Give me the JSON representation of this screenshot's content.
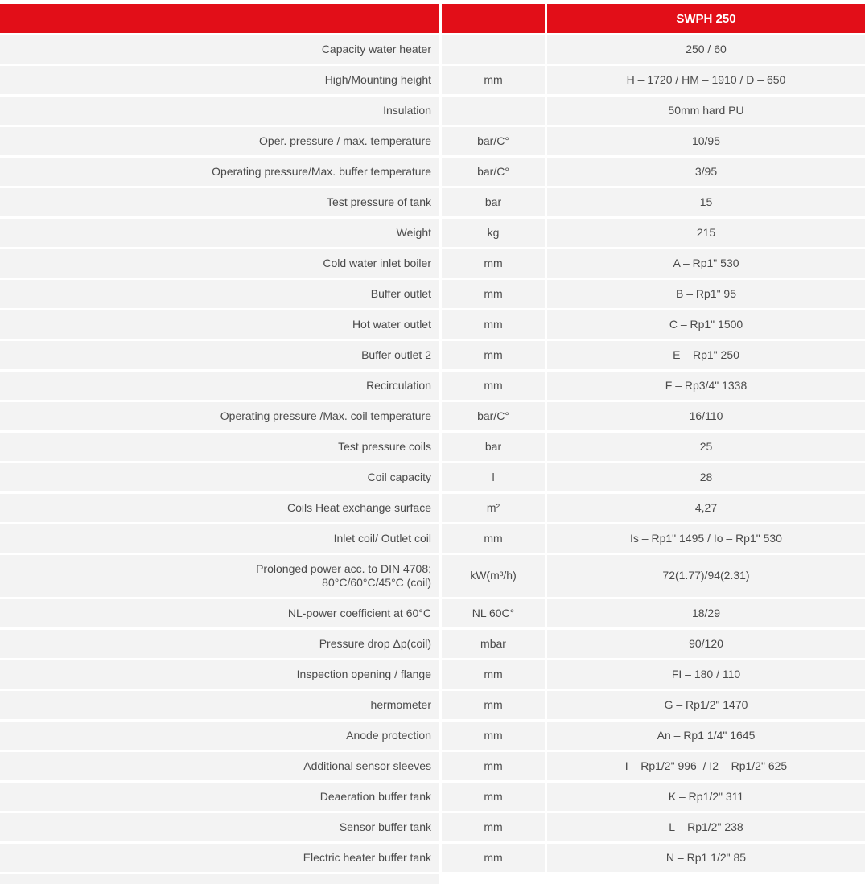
{
  "table": {
    "header": {
      "product": "SWPH 250"
    },
    "colors": {
      "header_bg": "#e20e18",
      "header_text": "#ffffff",
      "row_bg": "#f3f3f3",
      "text": "#4a4a4a"
    },
    "rows": [
      {
        "label": "Capacity water heater",
        "unit": "",
        "value": "250 / 60"
      },
      {
        "label": "High/Mounting height",
        "unit": "mm",
        "value": "H – 1720 / HM – 1910 / D – 650"
      },
      {
        "label": "Insulation",
        "unit": "",
        "value": "50mm hard PU"
      },
      {
        "label": "Oper. pressure / max. temperature",
        "unit": "bar/C°",
        "value": "10/95"
      },
      {
        "label": "Operating pressure/Max. buffer temperature",
        "unit": "bar/C°",
        "value": "3/95"
      },
      {
        "label": "Test pressure of tank",
        "unit": "bar",
        "value": "15"
      },
      {
        "label": "Weight",
        "unit": "kg",
        "value": "215"
      },
      {
        "label": "Cold water inlet boiler",
        "unit": "mm",
        "value": "A – Rp1\" 530"
      },
      {
        "label": "Buffer outlet",
        "unit": "mm",
        "value": "B – Rp1\" 95"
      },
      {
        "label": "Hot water outlet",
        "unit": "mm",
        "value": "C – Rp1\" 1500"
      },
      {
        "label": "Buffer outlet 2",
        "unit": "mm",
        "value": "E – Rp1\" 250"
      },
      {
        "label": "Recirculation",
        "unit": "mm",
        "value": "F – Rp3/4\" 1338"
      },
      {
        "label": "Operating pressure /Max. coil temperature",
        "unit": "bar/C°",
        "value": "16/110"
      },
      {
        "label": "Test pressure coils",
        "unit": "bar",
        "value": "25"
      },
      {
        "label": "Coil capacity",
        "unit": "l",
        "value": "28"
      },
      {
        "label": "Coils Heat exchange surface",
        "unit": "m²",
        "value": "4,27"
      },
      {
        "label": "Inlet coil/ Outlet coil",
        "unit": "mm",
        "value": "Is – Rp1\" 1495 / Io – Rp1\" 530"
      },
      {
        "label": "Prolonged power acc. to DIN 4708;",
        "label2": "80°C/60°C/45°C (coil)",
        "unit": "kW(m³/h)",
        "value": "72(1.77)/94(2.31)"
      },
      {
        "label": "NL-power coefficient at 60°C",
        "unit": "NL 60C°",
        "value": "18/29"
      },
      {
        "label": "Pressure drop Δp(coil)",
        "unit": "mbar",
        "value": "90/120"
      },
      {
        "label": "Inspection opening / flange",
        "unit": "mm",
        "value": "FI – 180 / 110"
      },
      {
        "label": "hermometer",
        "unit": "mm",
        "value": "G – Rp1/2\" 1470"
      },
      {
        "label": "Anode protection",
        "unit": "mm",
        "value": "An – Rp1 1/4\" 1645"
      },
      {
        "label": "Additional sensor sleeves",
        "unit": "mm",
        "value": "I – Rp1/2\" 996  / I2 – Rp1/2\" 625"
      },
      {
        "label": "Deaeration buffer tank",
        "unit": "mm",
        "value": "K – Rp1/2\" 311"
      },
      {
        "label": "Sensor buffer tank",
        "unit": "mm",
        "value": "L – Rp1/2\" 238"
      },
      {
        "label": "Electric heater buffer tank",
        "unit": "mm",
        "value": "N – Rp1 1/2\" 85"
      }
    ]
  }
}
